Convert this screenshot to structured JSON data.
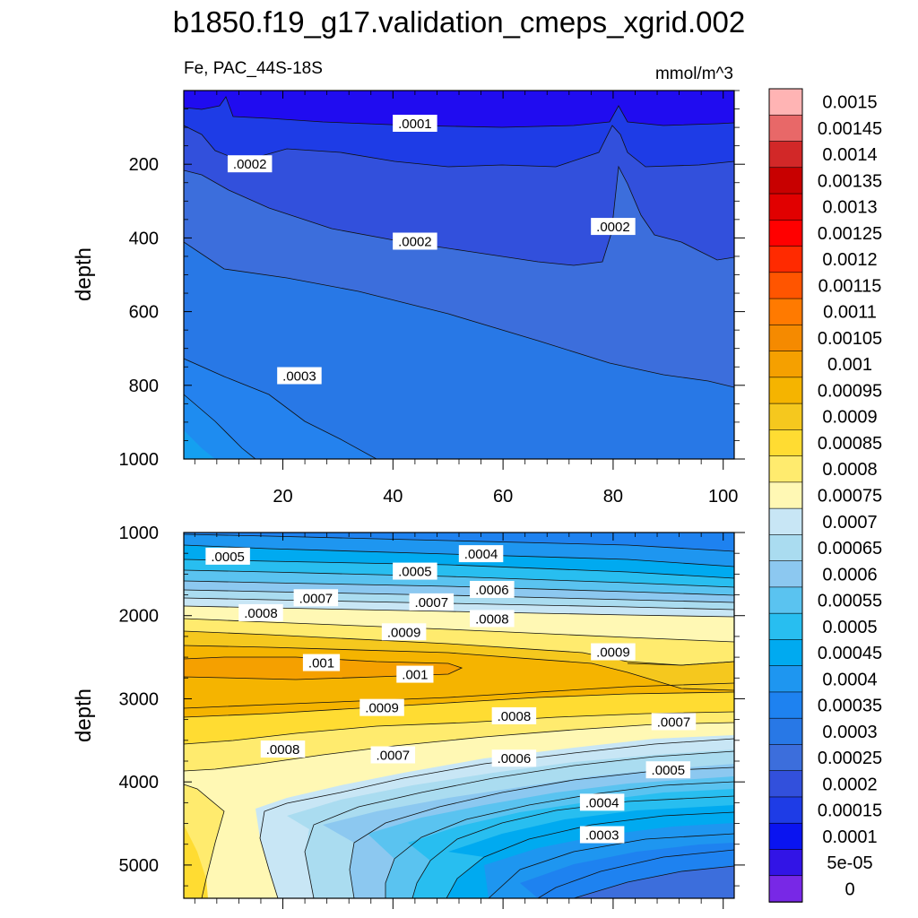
{
  "chart_data": {
    "type": "contour",
    "title": "b1850.f19_g17.validation_cmeps_xgrid.002",
    "variable_label": "Fe, PAC_44S-18S",
    "units": "mmol/m^3",
    "x_ticks": [
      20,
      40,
      60,
      80,
      100
    ],
    "xlim": [
      2,
      102
    ],
    "panels": [
      {
        "name": "upper",
        "ylabel": "depth",
        "ylim": [
          0,
          1000
        ],
        "y_ticks": [
          200,
          400,
          600,
          800,
          1000
        ],
        "contour_labels": [
          {
            "text": ".0001",
            "x": 44,
            "y": 90
          },
          {
            "text": ".0002",
            "x": 14,
            "y": 200
          },
          {
            "text": ".0002",
            "x": 44,
            "y": 410
          },
          {
            "text": ".0002",
            "x": 80,
            "y": 370
          },
          {
            "text": ".0003",
            "x": 23,
            "y": 775
          }
        ]
      },
      {
        "name": "lower",
        "ylabel": "depth",
        "ylim": [
          1000,
          5400
        ],
        "y_ticks": [
          1000,
          2000,
          3000,
          4000,
          5000
        ],
        "contour_labels": [
          {
            "text": ".0005",
            "x": 10,
            "y": 1290
          },
          {
            "text": ".0004",
            "x": 56,
            "y": 1260
          },
          {
            "text": ".0005",
            "x": 44,
            "y": 1470
          },
          {
            "text": ".0006",
            "x": 58,
            "y": 1690
          },
          {
            "text": ".0007",
            "x": 26,
            "y": 1790
          },
          {
            "text": ".0007",
            "x": 47,
            "y": 1840
          },
          {
            "text": ".0008",
            "x": 16,
            "y": 1970
          },
          {
            "text": ".0008",
            "x": 58,
            "y": 2040
          },
          {
            "text": ".0009",
            "x": 42,
            "y": 2200
          },
          {
            "text": ".0009",
            "x": 80,
            "y": 2440
          },
          {
            "text": ".001",
            "x": 27,
            "y": 2570
          },
          {
            "text": ".001",
            "x": 44,
            "y": 2710
          },
          {
            "text": ".0009",
            "x": 38,
            "y": 3110
          },
          {
            "text": ".0008",
            "x": 62,
            "y": 3210
          },
          {
            "text": ".0007",
            "x": 91,
            "y": 3280
          },
          {
            "text": ".0008",
            "x": 20,
            "y": 3610
          },
          {
            "text": ".0007",
            "x": 40,
            "y": 3680
          },
          {
            "text": ".0006",
            "x": 62,
            "y": 3720
          },
          {
            "text": ".0005",
            "x": 90,
            "y": 3860
          },
          {
            "text": ".0004",
            "x": 78,
            "y": 4250
          },
          {
            "text": ".0003",
            "x": 78,
            "y": 4640
          }
        ]
      }
    ],
    "colorbar": {
      "levels": [
        "0.0015",
        "0.00145",
        "0.0014",
        "0.00135",
        "0.0013",
        "0.00125",
        "0.0012",
        "0.00115",
        "0.0011",
        "0.00105",
        "0.001",
        "0.00095",
        "0.0009",
        "0.00085",
        "0.0008",
        "0.00075",
        "0.0007",
        "0.00065",
        "0.0006",
        "0.00055",
        "0.0005",
        "0.00045",
        "0.0004",
        "0.00035",
        "0.0003",
        "0.00025",
        "0.0002",
        "0.00015",
        "0.0001",
        "5e-05",
        "0"
      ],
      "colors": [
        "#FFB4B4",
        "#E86868",
        "#D22828",
        "#C80000",
        "#E10000",
        "#FF0000",
        "#FF2A00",
        "#FF5500",
        "#FF7A00",
        "#F58A00",
        "#F5A000",
        "#F5B400",
        "#F5C81E",
        "#FFDC32",
        "#FFEB6E",
        "#FFF8B4",
        "#C8E6F5",
        "#AADCF0",
        "#8CC8F0",
        "#5AC3F0",
        "#28BEF0",
        "#00AAF0",
        "#1E96F0",
        "#1E82F0",
        "#2878E6",
        "#3C6EDC",
        "#3250DC",
        "#1E3CE6",
        "#0A14F0",
        "#3214E6",
        "#7828E6"
      ]
    }
  }
}
